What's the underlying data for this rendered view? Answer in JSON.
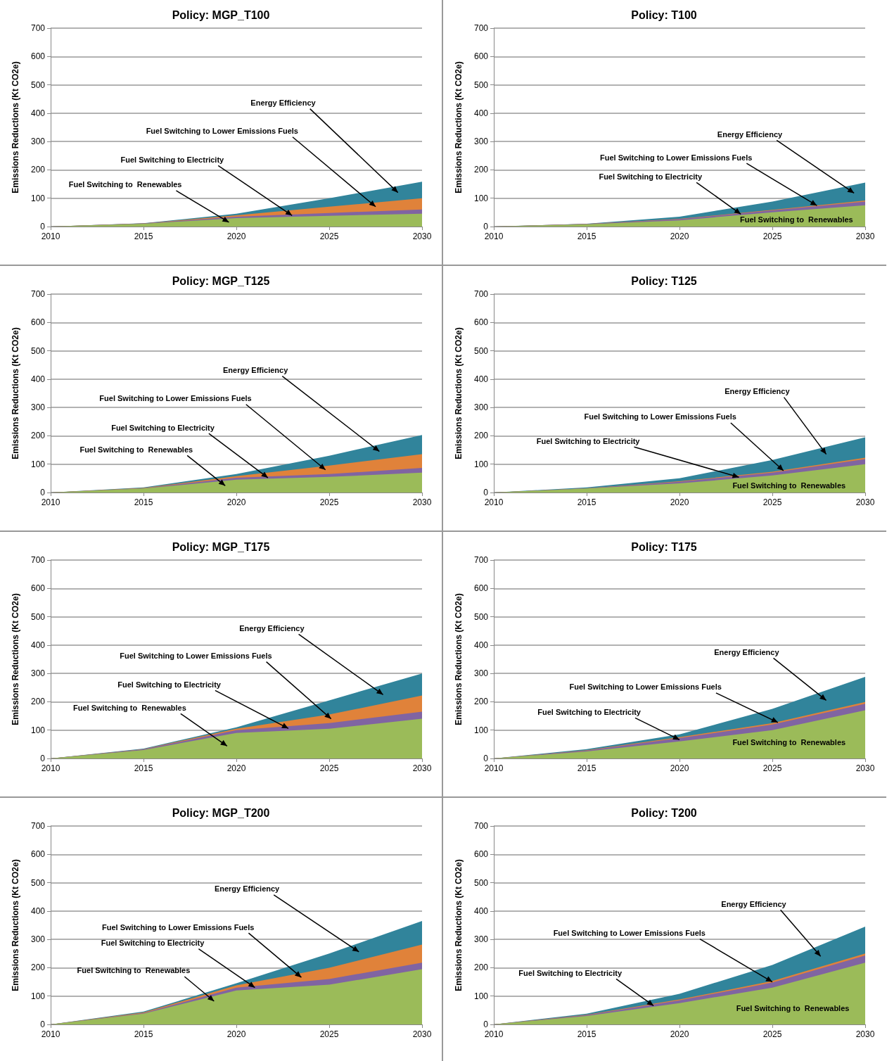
{
  "chart_data": [
    {
      "type": "area",
      "stacked": true,
      "title": "Policy: MGP_T100",
      "ylabel": "Emissions Reductions (Kt CO2e)",
      "x": [
        2010,
        2015,
        2020,
        2025,
        2030
      ],
      "xlim": [
        2010,
        2030
      ],
      "xticks": [
        2010,
        2015,
        2020,
        2025,
        2030
      ],
      "ylim": [
        0,
        700
      ],
      "yticks": [
        0,
        100,
        200,
        300,
        400,
        500,
        600,
        700
      ],
      "grid": "y",
      "series": [
        {
          "color": "#9bbb59",
          "values": [
            0,
            10,
            30,
            38,
            45
          ]
        },
        {
          "color": "#8064a2",
          "values": [
            0,
            1,
            5,
            10,
            15
          ]
        },
        {
          "color": "#e0823a",
          "values": [
            0,
            0,
            5,
            22,
            40
          ]
        },
        {
          "color": "#31849b",
          "values": [
            0,
            1,
            5,
            30,
            58
          ]
        }
      ],
      "annotations": [
        "Energy Efficiency",
        "Fuel Switching to Lower Emissions Fuels",
        {
          "text": "Fuel Switching to Electricity",
          "x": 2023,
          "y": 39
        },
        "Fuel Switching to  Renewables"
      ]
    },
    {
      "type": "area",
      "stacked": true,
      "title": "Policy: T100",
      "ylabel": "Emissions Reductions (Kt CO2e)",
      "x": [
        2010,
        2015,
        2020,
        2025,
        2030
      ],
      "xlim": [
        2010,
        2030
      ],
      "xticks": [
        2010,
        2015,
        2020,
        2025,
        2030
      ],
      "ylim": [
        0,
        700
      ],
      "yticks": [
        0,
        100,
        200,
        300,
        400,
        500,
        600,
        700
      ],
      "grid": "y",
      "series": [
        {
          "color": "#9bbb59",
          "values": [
            0,
            8,
            22,
            50,
            75
          ]
        },
        {
          "color": "#8064a2",
          "values": [
            0,
            1,
            4,
            7,
            13
          ]
        },
        {
          "color": "#e0823a",
          "values": [
            0,
            0,
            1,
            2,
            4
          ]
        },
        {
          "color": "#31849b",
          "values": [
            0,
            1,
            8,
            29,
            63
          ]
        }
      ],
      "annotations": [
        "Energy Efficiency",
        {
          "text": "Fuel Switching to Lower Emissions Fuels",
          "x": 2027.4,
          "y": 74
        },
        {
          "text": "Fuel Switching to Electricity",
          "x": 2023.3,
          "y": 44
        },
        "Fuel Switching to  Renewables"
      ]
    },
    {
      "type": "area",
      "stacked": true,
      "title": "Policy: MGP_T125",
      "ylabel": "Emissions Reductions (Kt CO2e)",
      "x": [
        2010,
        2015,
        2020,
        2025,
        2030
      ],
      "xlim": [
        2010,
        2030
      ],
      "xticks": [
        2010,
        2015,
        2020,
        2025,
        2030
      ],
      "ylim": [
        0,
        700
      ],
      "yticks": [
        0,
        100,
        200,
        300,
        400,
        500,
        600,
        700
      ],
      "grid": "y",
      "series": [
        {
          "color": "#9bbb59",
          "values": [
            0,
            14,
            45,
            55,
            70
          ]
        },
        {
          "color": "#8064a2",
          "values": [
            0,
            1,
            7,
            10,
            17
          ]
        },
        {
          "color": "#e0823a",
          "values": [
            0,
            1,
            6,
            30,
            48
          ]
        },
        {
          "color": "#31849b",
          "values": [
            0,
            2,
            7,
            35,
            68
          ]
        }
      ],
      "annotations": [
        "Energy Efficiency",
        "Fuel Switching to Lower Emissions Fuels",
        {
          "text": "Fuel Switching to Electricity",
          "x": 2021.7,
          "y": 52
        },
        "Fuel Switching to  Renewables"
      ]
    },
    {
      "type": "area",
      "stacked": true,
      "title": "Policy: T125",
      "ylabel": "Emissions Reductions (Kt CO2e)",
      "x": [
        2010,
        2015,
        2020,
        2025,
        2030
      ],
      "xlim": [
        2010,
        2030
      ],
      "xticks": [
        2010,
        2015,
        2020,
        2025,
        2030
      ],
      "ylim": [
        0,
        700
      ],
      "yticks": [
        0,
        100,
        200,
        300,
        400,
        500,
        600,
        700
      ],
      "grid": "y",
      "series": [
        {
          "color": "#9bbb59",
          "values": [
            0,
            14,
            32,
            60,
            100
          ]
        },
        {
          "color": "#8064a2",
          "values": [
            0,
            1,
            6,
            10,
            18
          ]
        },
        {
          "color": "#e0823a",
          "values": [
            0,
            0,
            2,
            3,
            5
          ]
        },
        {
          "color": "#31849b",
          "values": [
            0,
            3,
            10,
            42,
            72
          ]
        }
      ],
      "annotations": [
        "Energy Efficiency",
        {
          "text": "Fuel Switching to Lower Emissions Fuels",
          "x": 2025.6,
          "y": 77
        },
        {
          "text": "Fuel Switching to Electricity",
          "x": 2023.2,
          "y": 54
        },
        "Fuel Switching to  Renewables"
      ]
    },
    {
      "type": "area",
      "stacked": true,
      "title": "Policy: MGP_T175",
      "ylabel": "Emissions Reductions (Kt CO2e)",
      "x": [
        2010,
        2015,
        2020,
        2025,
        2030
      ],
      "xlim": [
        2010,
        2030
      ],
      "xticks": [
        2010,
        2015,
        2020,
        2025,
        2030
      ],
      "ylim": [
        0,
        700
      ],
      "yticks": [
        0,
        100,
        200,
        300,
        400,
        500,
        600,
        700
      ],
      "grid": "y",
      "series": [
        {
          "color": "#9bbb59",
          "values": [
            0,
            30,
            90,
            105,
            140
          ]
        },
        {
          "color": "#8064a2",
          "values": [
            0,
            2,
            10,
            20,
            25
          ]
        },
        {
          "color": "#e0823a",
          "values": [
            0,
            1,
            5,
            30,
            57
          ]
        },
        {
          "color": "#31849b",
          "values": [
            0,
            2,
            5,
            50,
            78
          ]
        }
      ],
      "annotations": [
        "Energy Efficiency",
        "Fuel Switching to Lower Emissions Fuels",
        {
          "text": "Fuel Switching to Electricity",
          "x": 2022.8,
          "y": 106
        },
        "Fuel Switching to  Renewables"
      ]
    },
    {
      "type": "area",
      "stacked": true,
      "title": "Policy: T175",
      "ylabel": "Emissions Reductions (Kt CO2e)",
      "x": [
        2010,
        2015,
        2020,
        2025,
        2030
      ],
      "xlim": [
        2010,
        2030
      ],
      "xticks": [
        2010,
        2015,
        2020,
        2025,
        2030
      ],
      "ylim": [
        0,
        700
      ],
      "yticks": [
        0,
        100,
        200,
        300,
        400,
        500,
        600,
        700
      ],
      "grid": "y",
      "series": [
        {
          "color": "#9bbb59",
          "values": [
            0,
            25,
            60,
            100,
            170
          ]
        },
        {
          "color": "#8064a2",
          "values": [
            0,
            3,
            12,
            20,
            23
          ]
        },
        {
          "color": "#e0823a",
          "values": [
            0,
            1,
            3,
            5,
            6
          ]
        },
        {
          "color": "#31849b",
          "values": [
            0,
            4,
            10,
            50,
            89
          ]
        }
      ],
      "annotations": [
        "Energy Efficiency",
        {
          "text": "Fuel Switching to Lower Emissions Fuels",
          "x": 2025.3,
          "y": 127
        },
        {
          "text": "Fuel Switching to Electricity",
          "x": 2020,
          "y": 66
        },
        "Fuel Switching to  Renewables"
      ]
    },
    {
      "type": "area",
      "stacked": true,
      "title": "Policy: MGP_T200",
      "ylabel": "Emissions Reductions (Kt CO2e)",
      "x": [
        2010,
        2015,
        2020,
        2025,
        2030
      ],
      "xlim": [
        2010,
        2030
      ],
      "xticks": [
        2010,
        2015,
        2020,
        2025,
        2030
      ],
      "ylim": [
        0,
        700
      ],
      "yticks": [
        0,
        100,
        200,
        300,
        400,
        500,
        600,
        700
      ],
      "grid": "y",
      "series": [
        {
          "color": "#9bbb59",
          "values": [
            0,
            38,
            120,
            140,
            195
          ]
        },
        {
          "color": "#8064a2",
          "values": [
            0,
            2,
            10,
            20,
            23
          ]
        },
        {
          "color": "#e0823a",
          "values": [
            0,
            2,
            8,
            40,
            64
          ]
        },
        {
          "color": "#31849b",
          "values": [
            0,
            3,
            7,
            50,
            83
          ]
        }
      ],
      "annotations": [
        "Energy Efficiency",
        "Fuel Switching to Lower Emissions Fuels",
        {
          "text": "Fuel Switching to Electricity",
          "x": 2021,
          "y": 130
        },
        "Fuel Switching to  Renewables"
      ]
    },
    {
      "type": "area",
      "stacked": true,
      "title": "Policy: T200",
      "ylabel": "Emissions Reductions (Kt CO2e)",
      "x": [
        2010,
        2015,
        2020,
        2025,
        2030
      ],
      "xlim": [
        2010,
        2030
      ],
      "xticks": [
        2010,
        2015,
        2020,
        2025,
        2030
      ],
      "ylim": [
        0,
        700
      ],
      "yticks": [
        0,
        100,
        200,
        300,
        400,
        500,
        600,
        700
      ],
      "grid": "y",
      "series": [
        {
          "color": "#9bbb59",
          "values": [
            0,
            30,
            75,
            130,
            218
          ]
        },
        {
          "color": "#8064a2",
          "values": [
            0,
            3,
            10,
            18,
            25
          ]
        },
        {
          "color": "#e0823a",
          "values": [
            0,
            1,
            3,
            5,
            7
          ]
        },
        {
          "color": "#31849b",
          "values": [
            0,
            4,
            20,
            57,
            95
          ]
        }
      ],
      "annotations": [
        "Energy Efficiency",
        {
          "text": "Fuel Switching to Lower Emissions Fuels",
          "x": 2025,
          "y": 150
        },
        {
          "text": "Fuel Switching to Electricity",
          "x": 2018.6,
          "y": 66
        },
        "Fuel Switching to  Renewables"
      ]
    }
  ]
}
